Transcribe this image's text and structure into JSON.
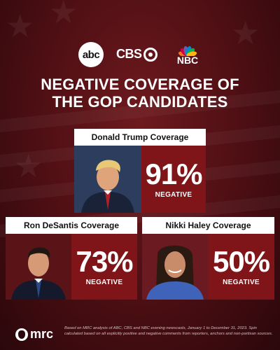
{
  "logos": {
    "abc": "abc",
    "cbs": "CBS",
    "nbc": "NBC",
    "nbc_peacock_colors": [
      "#f37021",
      "#cc004c",
      "#6460aa",
      "#0089d0",
      "#0db14b",
      "#fcb711"
    ]
  },
  "title_lines": [
    "NEGATIVE COVERAGE OF",
    "THE GOP CANDIDATES"
  ],
  "chart_data": {
    "type": "table",
    "title": "NEGATIVE COVERAGE OF THE GOP CANDIDATES",
    "rows": [
      {
        "label": "Donald Trump Coverage",
        "value": 91,
        "display": "91%",
        "sublabel": "NEGATIVE"
      },
      {
        "label": "Ron DeSantis Coverage",
        "value": 73,
        "display": "73%",
        "sublabel": "NEGATIVE"
      },
      {
        "label": "Nikki Haley Coverage",
        "value": 50,
        "display": "50%",
        "sublabel": "NEGATIVE"
      }
    ]
  },
  "footer": {
    "brand": "mrc",
    "note": "Based on MRC analysis of ABC, CBS and NBC evening newscasts, January 1 to December 31, 2023. Spin calculated based on all explicitly positive and negative comments from reporters, anchors and non-partisan sources."
  },
  "colors": {
    "accent": "#7f1518",
    "background": "#521015",
    "text": "#ffffff"
  },
  "icons": {
    "abc": "abc-logo",
    "cbs": "cbs-eye-logo",
    "nbc": "nbc-peacock-logo",
    "mrc": "mrc-logo"
  }
}
